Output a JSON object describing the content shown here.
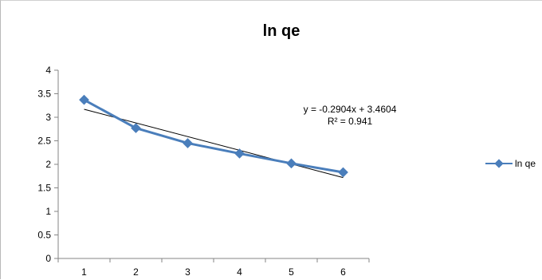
{
  "chart_data": {
    "type": "line",
    "title": "ln qe",
    "xlabel": "",
    "ylabel": "",
    "categories": [
      "1",
      "2",
      "3",
      "4",
      "5",
      "6"
    ],
    "x": [
      1,
      2,
      3,
      4,
      5,
      6
    ],
    "ylim": [
      0,
      4
    ],
    "yticks": [
      "0",
      "0.5",
      "1",
      "1.5",
      "2",
      "2.5",
      "3",
      "3.5",
      "4"
    ],
    "series": [
      {
        "name": "ln qe",
        "values": [
          3.37,
          2.77,
          2.45,
          2.23,
          2.02,
          1.83
        ],
        "color": "#4a7ebb",
        "marker": "diamond"
      }
    ],
    "trendline": {
      "type": "linear",
      "slope": -0.2904,
      "intercept": 3.4604,
      "color": "#000000",
      "equation": "y = -0.2904x + 3.4604",
      "r_squared": "R² = 0.941"
    },
    "grid": false,
    "legend": "right"
  }
}
